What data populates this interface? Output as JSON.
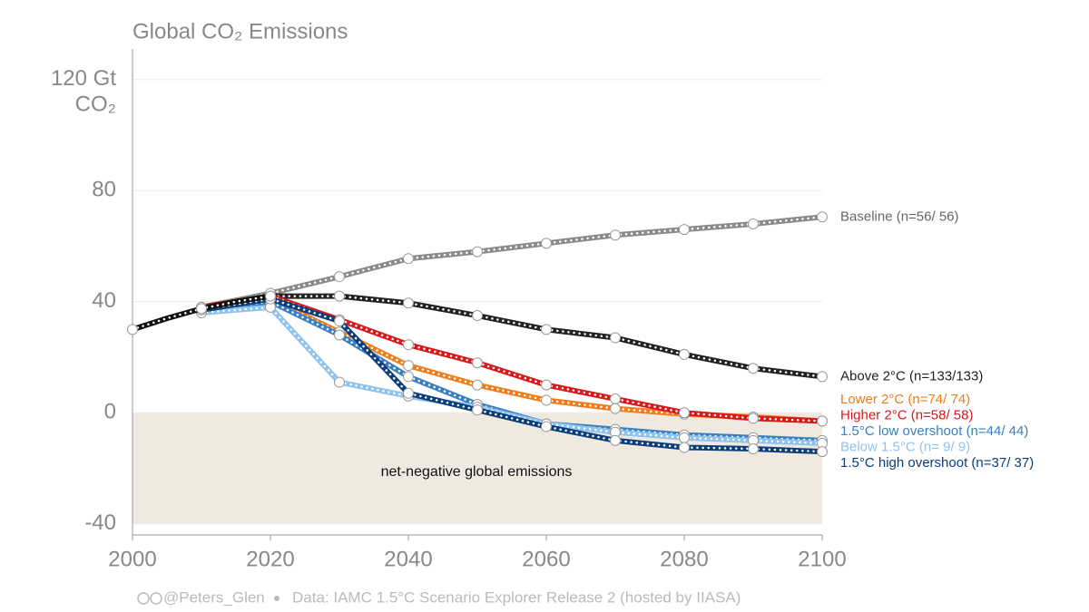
{
  "chart_data": {
    "type": "line",
    "title": "Global CO₂ Emissions",
    "y_unit": "CO₂",
    "xlim": [
      2000,
      2100
    ],
    "xticks": [
      2000,
      2020,
      2040,
      2060,
      2080,
      2100
    ],
    "ylim": [
      -44,
      131
    ],
    "yticks": [
      -40,
      0,
      40,
      80,
      {
        "value": 120,
        "label": "120 Gt"
      }
    ],
    "grid": true,
    "negative_region": {
      "label": "net-negative global emissions",
      "color": "#efe9df"
    },
    "history": {
      "x": [
        2000,
        2005,
        2010,
        2015,
        2020
      ],
      "values": [
        30,
        34,
        37.5,
        40,
        42
      ],
      "color": "#111111"
    },
    "x": [
      2010,
      2020,
      2030,
      2040,
      2050,
      2060,
      2070,
      2080,
      2090,
      2100
    ],
    "series": [
      {
        "name": "Baseline (n=56/ 56)",
        "color": "#8a8a8a",
        "label_color": "#666666",
        "values": [
          38,
          43,
          49,
          55.5,
          58,
          61,
          64,
          66,
          68,
          70.5
        ]
      },
      {
        "name": "Above 2°C (n=133/133)",
        "color": "#222222",
        "label_color": "#222222",
        "values": [
          38,
          42,
          42,
          39.5,
          35,
          30,
          27,
          21,
          16,
          13
        ]
      },
      {
        "name": "Lower 2°C (n=74/ 74)",
        "color": "#f07d1a",
        "label_color": "#f07d1a",
        "values": [
          37,
          41,
          29,
          17,
          10,
          4.5,
          1.5,
          -0.5,
          -1.5,
          -3
        ]
      },
      {
        "name": "Higher 2°C (n=58/ 58)",
        "color": "#d7191c",
        "label_color": "#d7191c",
        "values": [
          38,
          42,
          33.5,
          24.5,
          18,
          10,
          5,
          0,
          -2,
          -3
        ]
      },
      {
        "name": "1.5°C low overshoot (n=44/ 44)",
        "color": "#3a7fc1",
        "label_color": "#3a7fc1",
        "values": [
          37,
          40,
          28,
          13,
          3,
          -4,
          -6,
          -8,
          -9,
          -10
        ]
      },
      {
        "name": "Below 1.5°C (n= 9/  9)",
        "color": "#8ec3ee",
        "label_color": "#8ec3ee",
        "values": [
          36,
          38,
          11,
          6,
          2,
          -4,
          -7,
          -9,
          -10,
          -11
        ]
      },
      {
        "name": "1.5°C high overshoot (n=37/ 37)",
        "color": "#0b3d7a",
        "label_color": "#0b3d7a",
        "values": [
          37,
          41,
          33,
          7,
          1,
          -5,
          -10,
          -12.5,
          -13,
          -14
        ]
      }
    ],
    "footer": {
      "handle": "@Peters_Glen",
      "source": "Data: IAMC 1.5°C Scenario Explorer Release 2 (hosted by IIASA)"
    }
  }
}
